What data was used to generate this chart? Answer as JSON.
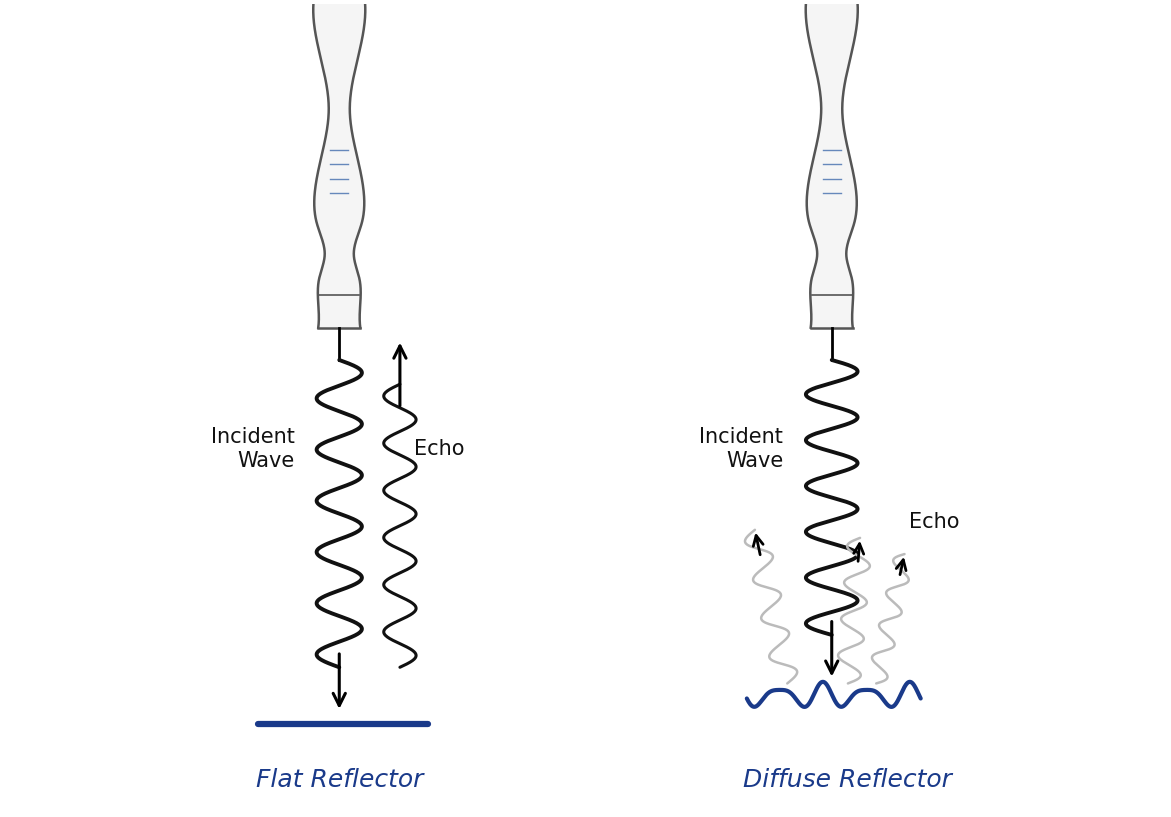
{
  "bg_color": "#ffffff",
  "probe_outline_color": "#555555",
  "probe_line_color": "#6688bb",
  "wave_color_dark": "#111111",
  "wave_color_light": "#bbbbbb",
  "flat_line_color": "#1a3a8a",
  "diffuse_line_color": "#1a3a8a",
  "label_color": "#1a3a8a",
  "text_color": "#111111",
  "flat_reflector_label": "Flat Reflector",
  "diffuse_reflector_label": "Diffuse Reflector",
  "incident_wave_label": "Incident\nWave",
  "echo_label": "Echo",
  "label_fontsize": 18,
  "text_fontsize": 15
}
